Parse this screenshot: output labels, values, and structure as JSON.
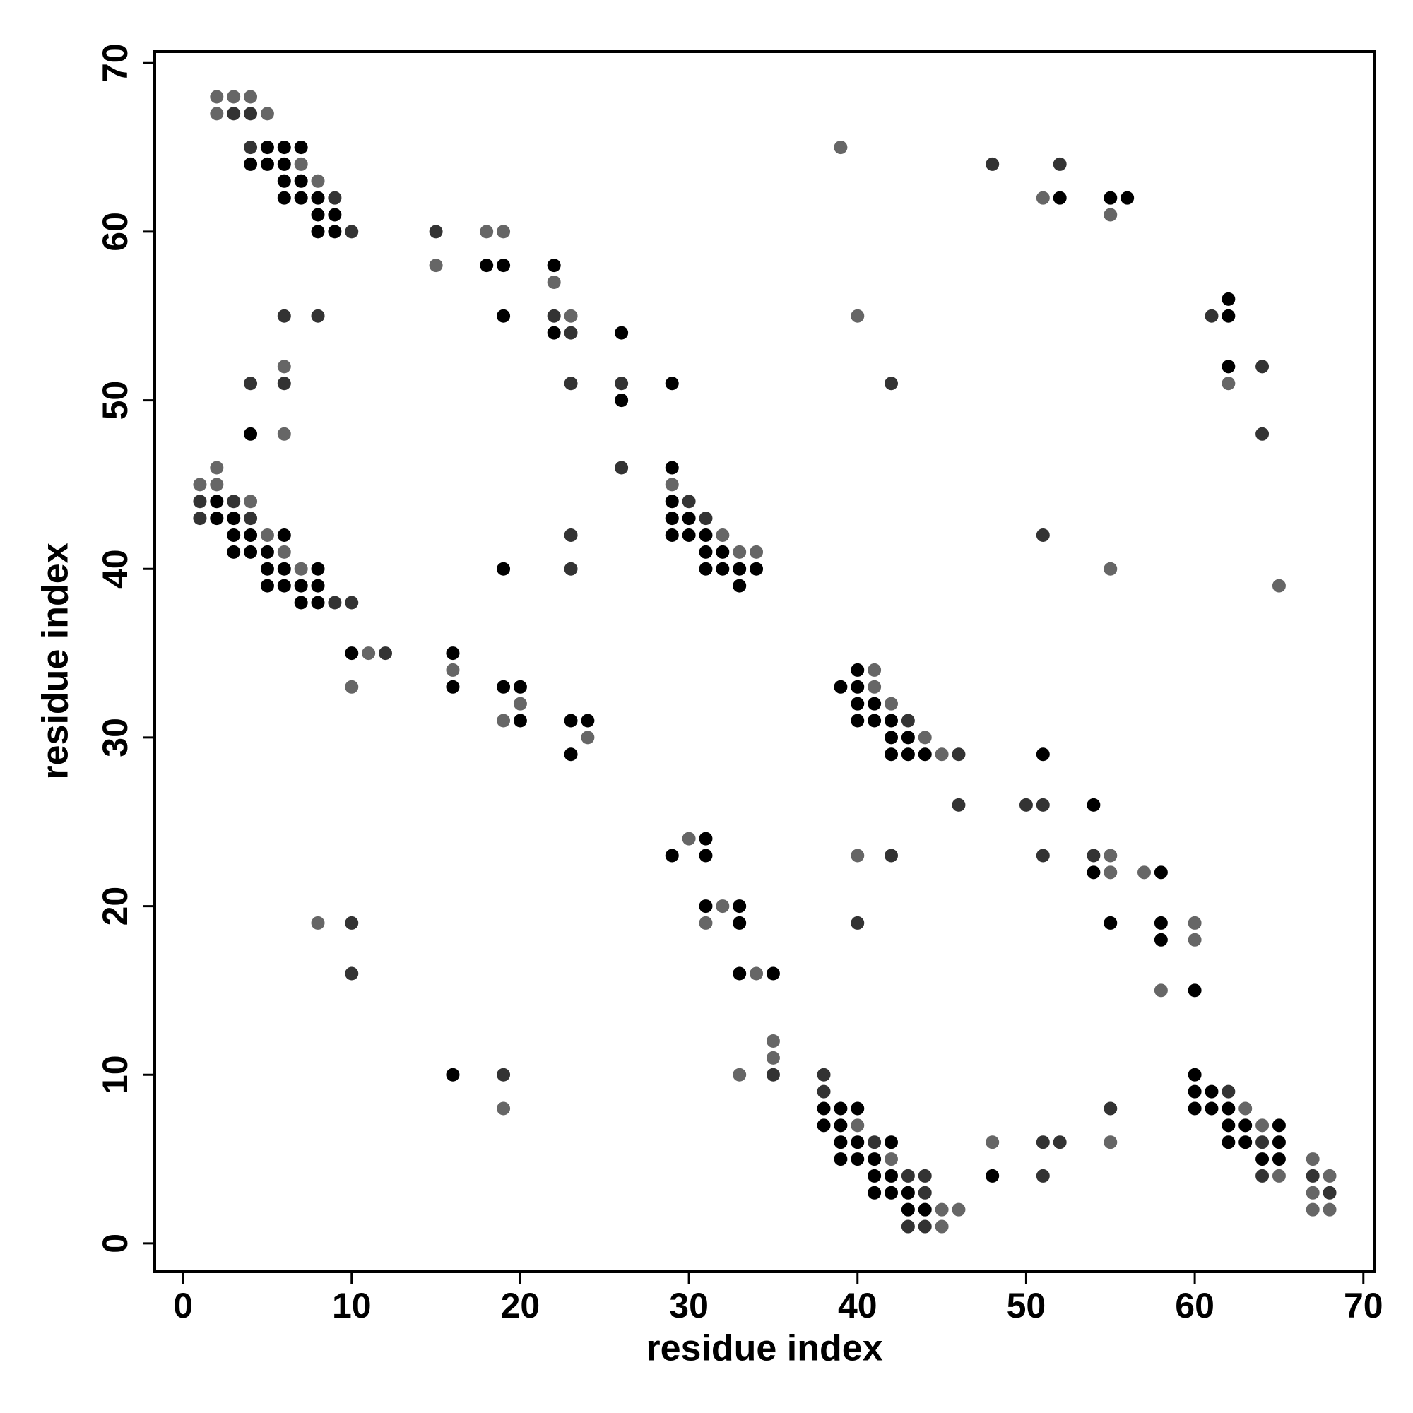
{
  "chart_data": {
    "type": "scatter",
    "xlabel": "residue index",
    "ylabel": "residue index",
    "xlim": [
      -1.68,
      70.68
    ],
    "ylim": [
      -1.68,
      70.68
    ],
    "xticks": [
      0,
      10,
      20,
      30,
      40,
      50,
      60,
      70
    ],
    "yticks": [
      0,
      10,
      20,
      30,
      40,
      50,
      60,
      70
    ],
    "series": [
      {
        "color": "#000000",
        "x": [
          5,
          6,
          7,
          4,
          5,
          6,
          6,
          7,
          6,
          7,
          8,
          52,
          55,
          56,
          8,
          9,
          8,
          9,
          18,
          19,
          22,
          62,
          19,
          62,
          22,
          26,
          62,
          29,
          26,
          4,
          29,
          2,
          29,
          2,
          3,
          29,
          30,
          3,
          4,
          6,
          29,
          30,
          31,
          3,
          4,
          5,
          31,
          32,
          5,
          6,
          8,
          19,
          31,
          32,
          33,
          34,
          5,
          6,
          7,
          8,
          33,
          7,
          8,
          10,
          16,
          40,
          16,
          19,
          20,
          39,
          40,
          40,
          41,
          20,
          23,
          24,
          40,
          41,
          42,
          42,
          43,
          23,
          42,
          43,
          44,
          51,
          54,
          31,
          29,
          31,
          54,
          58,
          31,
          33,
          33,
          55,
          58,
          58,
          33,
          35,
          60,
          16,
          60,
          60,
          61,
          38,
          39,
          40,
          60,
          61,
          62,
          38,
          39,
          62,
          63,
          65,
          39,
          40,
          42,
          62,
          63,
          65,
          39,
          40,
          41,
          64,
          65,
          41,
          42,
          48,
          41,
          42,
          43,
          43,
          44
        ],
        "values": [
          65,
          65,
          65,
          64,
          64,
          64,
          63,
          63,
          62,
          62,
          62,
          62,
          62,
          62,
          61,
          61,
          60,
          60,
          58,
          58,
          58,
          56,
          55,
          55,
          54,
          54,
          52,
          51,
          50,
          48,
          46,
          44,
          44,
          43,
          43,
          43,
          43,
          42,
          42,
          42,
          42,
          42,
          42,
          41,
          41,
          41,
          41,
          41,
          40,
          40,
          40,
          40,
          40,
          40,
          40,
          40,
          39,
          39,
          39,
          39,
          39,
          38,
          38,
          35,
          35,
          34,
          33,
          33,
          33,
          33,
          33,
          32,
          32,
          31,
          31,
          31,
          31,
          31,
          31,
          30,
          30,
          29,
          29,
          29,
          29,
          29,
          26,
          24,
          23,
          23,
          22,
          22,
          20,
          20,
          19,
          19,
          19,
          18,
          16,
          16,
          15,
          10,
          10,
          9,
          9,
          8,
          8,
          8,
          8,
          8,
          8,
          7,
          7,
          7,
          7,
          7,
          6,
          6,
          6,
          6,
          6,
          6,
          5,
          5,
          5,
          5,
          5,
          4,
          4,
          4,
          3,
          3,
          3,
          2,
          2
        ]
      },
      {
        "color": "#333333",
        "x": [
          3,
          4,
          4,
          48,
          52,
          9,
          10,
          15,
          6,
          8,
          22,
          61,
          23,
          64,
          4,
          6,
          23,
          26,
          42,
          64,
          26,
          1,
          3,
          30,
          1,
          4,
          31,
          23,
          51,
          23,
          9,
          10,
          12,
          43,
          46,
          46,
          50,
          51,
          42,
          51,
          54,
          10,
          40,
          10,
          19,
          35,
          38,
          38,
          62,
          55,
          41,
          51,
          52,
          64,
          43,
          44,
          51,
          64,
          67,
          44,
          68,
          43,
          44
        ],
        "values": [
          67,
          67,
          65,
          64,
          64,
          62,
          60,
          60,
          55,
          55,
          55,
          55,
          54,
          52,
          51,
          51,
          51,
          51,
          51,
          48,
          46,
          44,
          44,
          44,
          43,
          43,
          43,
          42,
          42,
          40,
          38,
          38,
          35,
          31,
          29,
          26,
          26,
          26,
          23,
          23,
          23,
          19,
          19,
          16,
          10,
          10,
          10,
          9,
          9,
          8,
          6,
          6,
          6,
          6,
          4,
          4,
          4,
          4,
          4,
          3,
          3,
          1,
          1
        ]
      },
      {
        "color": "#666666",
        "x": [
          2,
          3,
          4,
          2,
          5,
          39,
          7,
          8,
          51,
          55,
          18,
          19,
          15,
          22,
          23,
          40,
          6,
          62,
          6,
          2,
          1,
          2,
          29,
          4,
          5,
          32,
          6,
          33,
          34,
          7,
          55,
          65,
          11,
          16,
          41,
          10,
          41,
          20,
          42,
          19,
          24,
          44,
          45,
          30,
          40,
          55,
          55,
          57,
          32,
          8,
          31,
          60,
          60,
          34,
          58,
          35,
          35,
          33,
          19,
          63,
          40,
          64,
          48,
          55,
          42,
          67,
          65,
          68,
          67,
          45,
          46,
          67,
          68,
          45
        ],
        "values": [
          68,
          68,
          68,
          67,
          67,
          65,
          64,
          63,
          62,
          61,
          60,
          60,
          58,
          57,
          55,
          55,
          52,
          51,
          48,
          46,
          45,
          45,
          45,
          44,
          42,
          42,
          41,
          41,
          41,
          40,
          40,
          39,
          35,
          34,
          34,
          33,
          33,
          32,
          32,
          31,
          30,
          30,
          29,
          24,
          23,
          23,
          22,
          22,
          20,
          19,
          19,
          19,
          18,
          16,
          15,
          12,
          11,
          10,
          8,
          8,
          7,
          7,
          6,
          6,
          5,
          5,
          4,
          4,
          3,
          2,
          2,
          2,
          2,
          1
        ]
      }
    ]
  }
}
